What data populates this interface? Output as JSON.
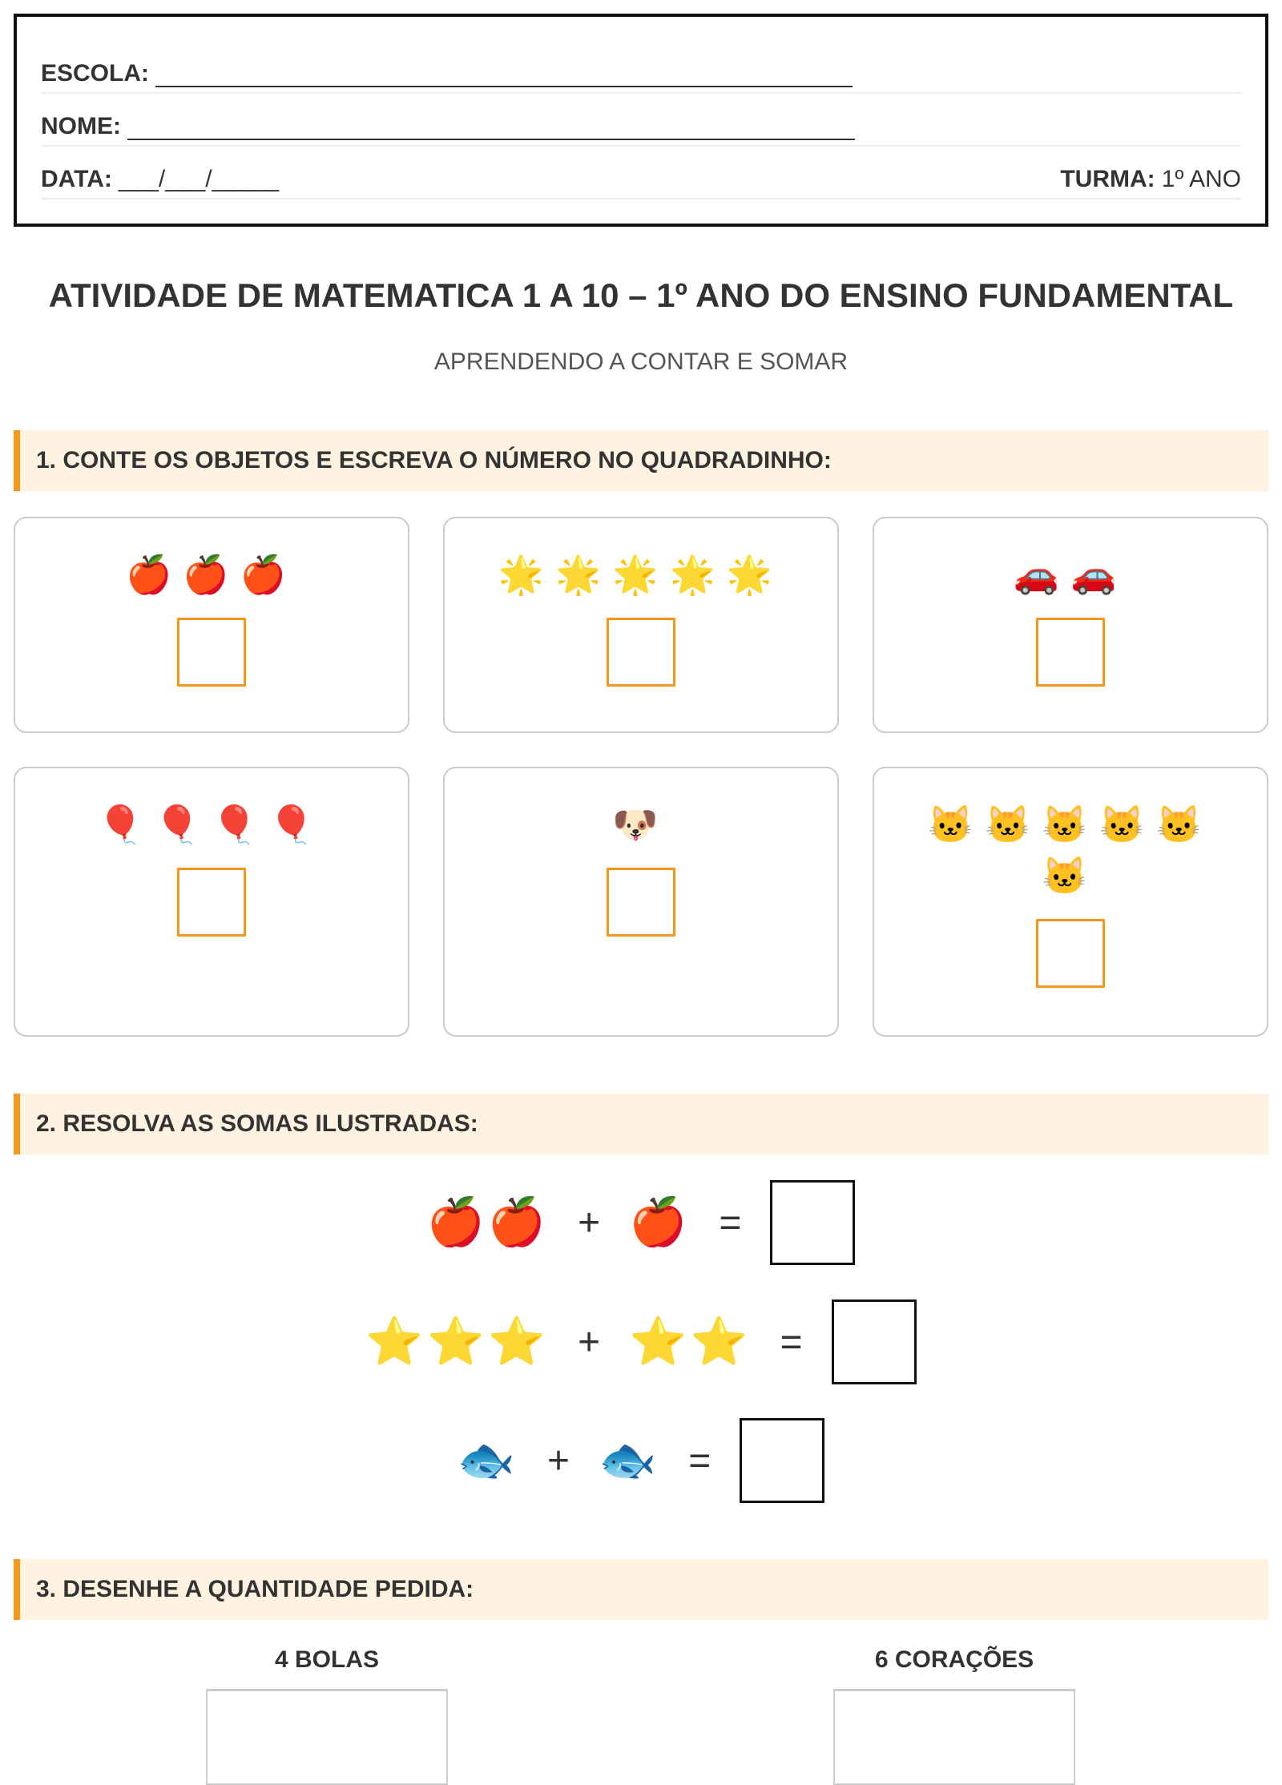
{
  "header": {
    "escola_label": "ESCOLA:",
    "nome_label": "NOME:",
    "data_label": "DATA:",
    "data_blank": "___/___/_____",
    "turma_label": "TURMA:",
    "turma_value": "1º ANO"
  },
  "title": "ATIVIDADE DE MATEMATICA 1 A 10 – 1º ANO DO ENSINO FUNDAMENTAL",
  "subtitle": "APRENDENDO A CONTAR E SOMAR",
  "section1": {
    "heading": "1. CONTE OS OBJETOS E ESCREVA O NÚMERO NO QUADRADINHO:",
    "cards": [
      {
        "icon": "apple-icon",
        "emoji": "🍎🍎🍎"
      },
      {
        "icon": "star-icon",
        "emoji": "🌟🌟🌟🌟🌟"
      },
      {
        "icon": "car-icon",
        "emoji": "🚗🚗"
      },
      {
        "icon": "balloon-icon",
        "emoji": "🎈🎈🎈🎈"
      },
      {
        "icon": "dog-icon",
        "emoji": "🐶"
      },
      {
        "icon": "cat-icon",
        "emoji": "🐱🐱🐱🐱🐱🐱"
      }
    ]
  },
  "section2": {
    "heading": "2. RESOLVA AS SOMAS ILUSTRADAS:",
    "plus": "+",
    "equals": "=",
    "sums": [
      {
        "a": "🍎🍎",
        "b": "🍎"
      },
      {
        "a": "⭐⭐⭐",
        "b": "⭐⭐"
      },
      {
        "a": "🐟",
        "b": "🐟"
      }
    ]
  },
  "section3": {
    "heading": "3. DESENHE A QUANTIDADE PEDIDA:",
    "items": [
      "4 BOLAS",
      "6 CORAÇÕES"
    ]
  },
  "colors": {
    "accent": "#f7981d",
    "section_bg": "#fff2e0"
  }
}
